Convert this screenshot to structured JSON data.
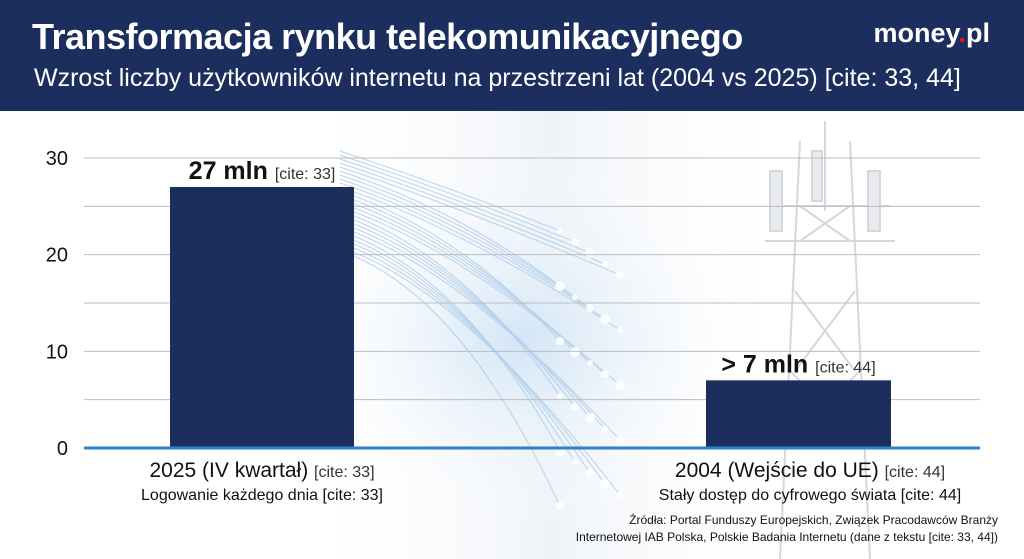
{
  "header": {
    "title": "Transformacja rynku telekomunikacyjnego",
    "subtitle": "Wzrost liczby użytkowników internetu na przestrzeni lat (2004 vs 2025) [cite: 33, 44]",
    "logo_main": "money",
    "logo_dot": ".",
    "logo_tld": "pl"
  },
  "colors": {
    "header_bg": "#1c2e5e",
    "bar": "#1c2e5e",
    "baseline": "#2f80c8",
    "grid": "#bdbdbd",
    "logo_dot": "#e8141b"
  },
  "chart_data": {
    "type": "bar",
    "categories": [
      "2025 (IV kwartał)",
      "2004 (Wejście do UE)"
    ],
    "category_cites": [
      "[cite: 33]",
      "[cite: 44]"
    ],
    "category_subtitles": [
      "Logowanie każdego dnia [cite: 33]",
      "Stały dostęp do cyfrowego świata [cite: 44]"
    ],
    "values": [
      27,
      7
    ],
    "data_labels": [
      "27 mln",
      "> 7 mln"
    ],
    "data_label_cites": [
      "[cite: 33]",
      "[cite: 44]"
    ],
    "yticks": [
      "0",
      "10",
      "20",
      "30"
    ],
    "ylim": [
      0,
      30
    ],
    "grid": true
  },
  "source": {
    "line1": "Źródła: Portal Funduszy Europejskich, Związek Pracodawców Branży",
    "line2": "Internetowej IAB Polska, Polskie Badania Internetu (dane z tekstu [cite: 33, 44])"
  }
}
